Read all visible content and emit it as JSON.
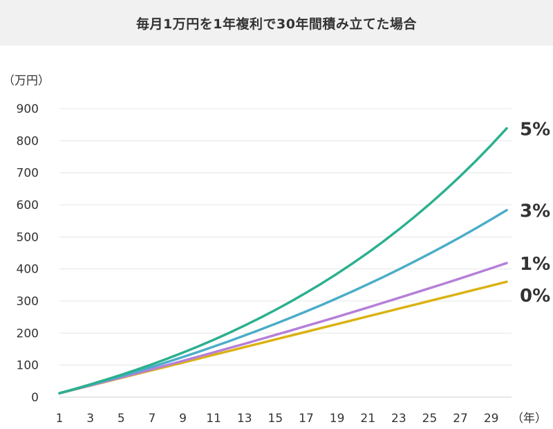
{
  "title": "毎月1万円を1年複利で30年間積み立てた場合",
  "chart_data": {
    "type": "line",
    "title": "毎月1万円を1年複利で30年間積み立てた場合",
    "ylabel": "（万円）",
    "xlabel": "（年）",
    "ylim": [
      0,
      900
    ],
    "yticks": [
      0,
      100,
      200,
      300,
      400,
      500,
      600,
      700,
      800,
      900
    ],
    "xlim": [
      1,
      30
    ],
    "xticks": [
      1,
      3,
      5,
      7,
      9,
      11,
      13,
      15,
      17,
      19,
      21,
      23,
      25,
      27,
      29
    ],
    "grid": true,
    "series": [
      {
        "name": "5%",
        "color": "#2bb08e",
        "x": [
          1,
          2,
          3,
          4,
          5,
          6,
          7,
          8,
          9,
          10,
          11,
          12,
          13,
          14,
          15,
          16,
          17,
          18,
          19,
          20,
          21,
          22,
          23,
          24,
          25,
          26,
          27,
          28,
          29,
          30
        ],
        "values": [
          12.6,
          25.8,
          39.7,
          54.3,
          69.6,
          85.7,
          102.6,
          120.3,
          138.9,
          158.5,
          179.0,
          200.6,
          223.2,
          247.0,
          271.9,
          298.2,
          325.8,
          354.7,
          385.1,
          417.0,
          450.5,
          485.7,
          522.7,
          561.5,
          602.2,
          645.0,
          689.9,
          737.0,
          786.5,
          838.5
        ]
      },
      {
        "name": "3%",
        "color": "#4aadc9",
        "x": [
          1,
          2,
          3,
          4,
          5,
          6,
          7,
          8,
          9,
          10,
          11,
          12,
          13,
          14,
          15,
          16,
          17,
          18,
          19,
          20,
          21,
          22,
          23,
          24,
          25,
          26,
          27,
          28,
          29,
          30
        ],
        "values": [
          12.4,
          25.1,
          38.2,
          51.7,
          65.5,
          79.8,
          94.5,
          109.6,
          125.2,
          141.2,
          157.7,
          174.7,
          192.2,
          210.2,
          228.8,
          247.9,
          267.6,
          287.8,
          308.6,
          330.1,
          352.2,
          375.0,
          398.5,
          422.6,
          447.5,
          473.1,
          499.5,
          526.6,
          554.6,
          583.4
        ]
      },
      {
        "name": "1%",
        "color": "#b57fd8",
        "x": [
          1,
          2,
          3,
          4,
          5,
          6,
          7,
          8,
          9,
          10,
          11,
          12,
          13,
          14,
          15,
          16,
          17,
          18,
          19,
          20,
          21,
          22,
          23,
          24,
          25,
          26,
          27,
          28,
          29,
          30
        ],
        "values": [
          12.1,
          24.3,
          36.7,
          49.2,
          61.8,
          74.4,
          87.3,
          100.2,
          113.2,
          126.3,
          139.6,
          153.0,
          166.5,
          180.2,
          194.0,
          207.9,
          222.0,
          236.2,
          250.6,
          265.0,
          279.7,
          294.5,
          309.4,
          324.5,
          339.7,
          355.1,
          370.6,
          386.4,
          402.2,
          418.3
        ]
      },
      {
        "name": "0%",
        "color": "#dbb211",
        "x": [
          1,
          2,
          3,
          4,
          5,
          6,
          7,
          8,
          9,
          10,
          11,
          12,
          13,
          14,
          15,
          16,
          17,
          18,
          19,
          20,
          21,
          22,
          23,
          24,
          25,
          26,
          27,
          28,
          29,
          30
        ],
        "values": [
          12,
          24,
          36,
          48,
          60,
          72,
          84,
          96,
          108,
          120,
          132,
          144,
          156,
          168,
          180,
          192,
          204,
          216,
          228,
          240,
          252,
          264,
          276,
          288,
          300,
          312,
          324,
          336,
          348,
          360
        ]
      }
    ]
  }
}
